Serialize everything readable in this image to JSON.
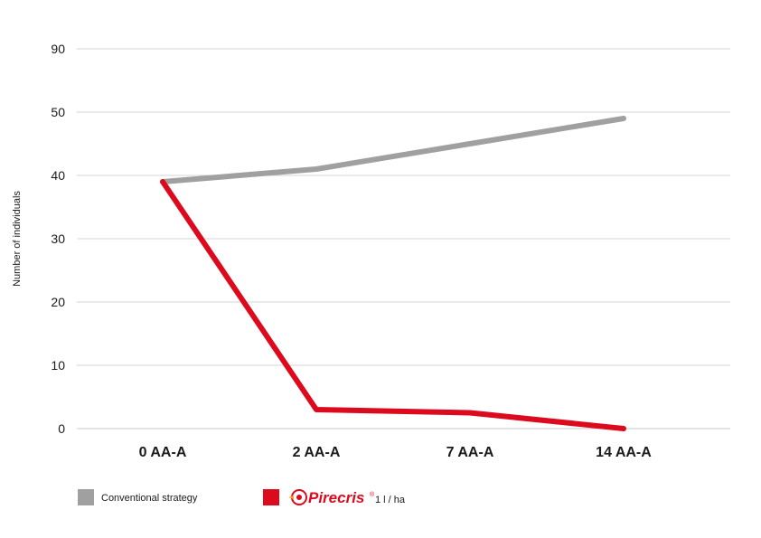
{
  "chart_data": {
    "type": "line",
    "categories": [
      "0 AA-A",
      "2 AA-A",
      "7 AA-A",
      "14 AA-A"
    ],
    "yticks": [
      0,
      10,
      20,
      30,
      40,
      50,
      90
    ],
    "ylabel": "Number of individuals",
    "grid": true,
    "legend_position": "bottom-left",
    "series": [
      {
        "name": "Conventional strategy",
        "color": "#a0a0a0",
        "values": [
          39,
          41,
          45,
          49
        ]
      },
      {
        "name": "Pirecris",
        "name_suffix": "1 l / ha",
        "color": "#dd0a1e",
        "values": [
          39,
          3,
          2.5,
          0
        ]
      }
    ]
  }
}
